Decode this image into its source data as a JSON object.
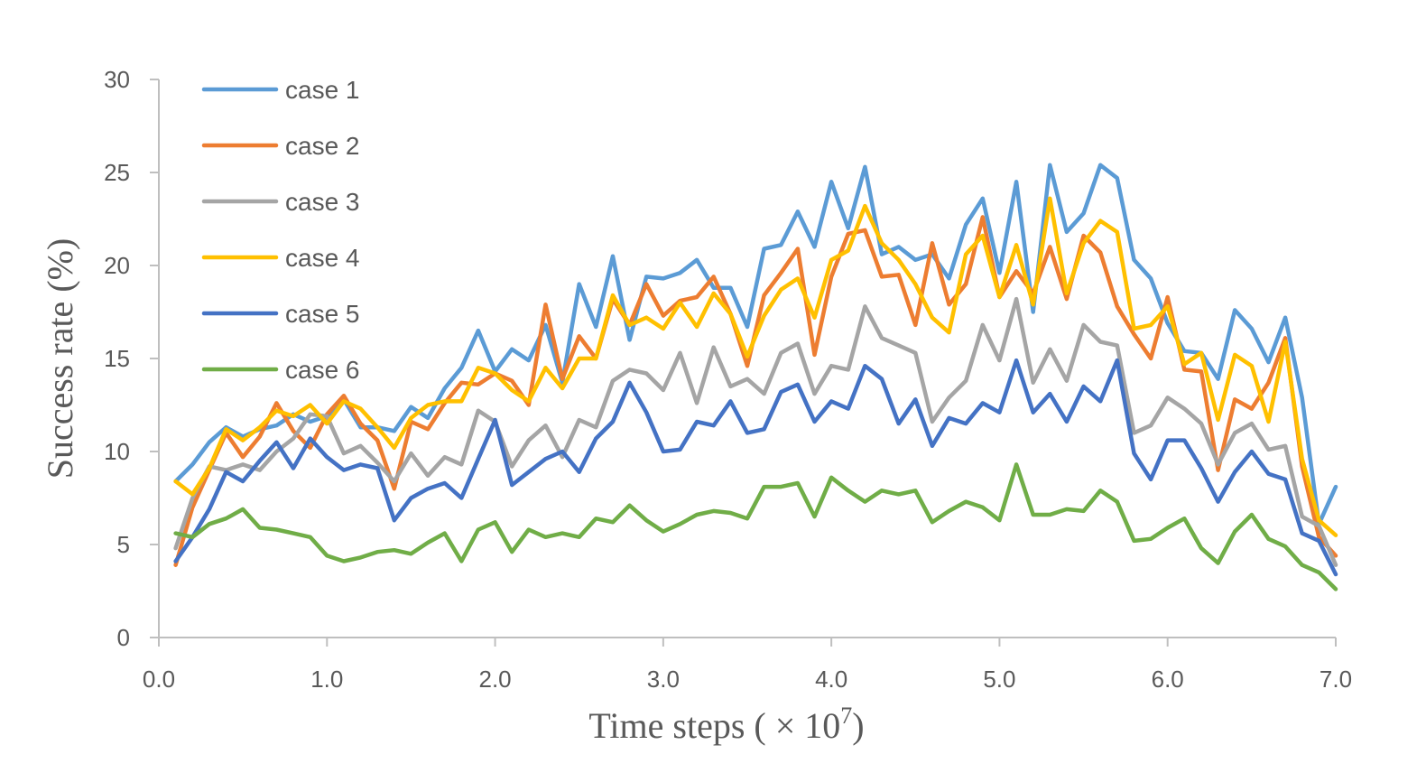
{
  "chart_data": {
    "type": "line",
    "title": "",
    "xlabel": "Time steps ( × 10",
    "xlabel_exponent": "7",
    "xlabel_suffix": ")",
    "ylabel": "Success rate (%)",
    "xlim": [
      0,
      7
    ],
    "ylim": [
      0,
      30
    ],
    "x_ticks": [
      0,
      1,
      2,
      3,
      4,
      5,
      6,
      7
    ],
    "x_tick_labels": [
      "0.0",
      "1.0",
      "2.0",
      "3.0",
      "4.0",
      "5.0",
      "6.0",
      "7.0"
    ],
    "y_ticks": [
      0,
      5,
      10,
      15,
      20,
      25,
      30
    ],
    "y_tick_labels": [
      "0",
      "5",
      "10",
      "15",
      "20",
      "25",
      "30"
    ],
    "grid": false,
    "legend_position": "top-left",
    "x": [
      0.1,
      0.2,
      0.3,
      0.4,
      0.5,
      0.6,
      0.7,
      0.8,
      0.9,
      1.0,
      1.1,
      1.2,
      1.3,
      1.4,
      1.5,
      1.6,
      1.7,
      1.8,
      1.9,
      2.0,
      2.1,
      2.2,
      2.3,
      2.4,
      2.5,
      2.6,
      2.7,
      2.8,
      2.9,
      3.0,
      3.1,
      3.2,
      3.3,
      3.4,
      3.5,
      3.6,
      3.7,
      3.8,
      3.9,
      4.0,
      4.1,
      4.2,
      4.3,
      4.4,
      4.5,
      4.6,
      4.7,
      4.8,
      4.9,
      5.0,
      5.1,
      5.2,
      5.3,
      5.4,
      5.5,
      5.6,
      5.7,
      5.8,
      5.9,
      6.0,
      6.1,
      6.2,
      6.3,
      6.4,
      6.5,
      6.6,
      6.7,
      6.8,
      6.9,
      7.0
    ],
    "series": [
      {
        "name": "case 1",
        "color": "#5B9BD5",
        "values": [
          8.4,
          9.3,
          10.5,
          11.3,
          10.8,
          11.2,
          11.4,
          12.0,
          11.6,
          11.9,
          12.8,
          11.3,
          11.3,
          11.1,
          12.4,
          11.8,
          13.4,
          14.5,
          16.5,
          14.3,
          15.5,
          14.9,
          16.8,
          13.7,
          19.0,
          16.7,
          20.5,
          16.0,
          19.4,
          19.3,
          19.6,
          20.3,
          18.8,
          18.8,
          16.7,
          20.9,
          21.1,
          22.9,
          21.0,
          24.5,
          22.0,
          25.3,
          20.6,
          21.0,
          20.3,
          20.6,
          19.3,
          22.2,
          23.6,
          19.6,
          24.5,
          17.5,
          25.4,
          21.8,
          22.8,
          25.4,
          24.7,
          20.3,
          19.3,
          16.9,
          15.4,
          15.3,
          13.9,
          17.6,
          16.6,
          14.8,
          17.2,
          12.9,
          6.1,
          8.1
        ]
      },
      {
        "name": "case 2",
        "color": "#ED7D31",
        "values": [
          3.9,
          7.0,
          9.0,
          11.0,
          9.7,
          10.8,
          12.6,
          11.1,
          10.2,
          12.0,
          13.0,
          11.5,
          10.6,
          8.0,
          11.6,
          11.2,
          12.6,
          13.7,
          13.6,
          14.2,
          13.8,
          12.5,
          17.9,
          13.9,
          16.2,
          15.0,
          18.2,
          16.8,
          19.0,
          17.3,
          18.1,
          18.3,
          19.4,
          17.4,
          14.6,
          18.4,
          19.6,
          20.9,
          15.2,
          19.4,
          21.7,
          21.9,
          19.4,
          19.5,
          16.8,
          21.2,
          17.9,
          19.0,
          22.6,
          18.3,
          19.7,
          18.5,
          21.0,
          18.2,
          21.6,
          20.7,
          17.8,
          16.3,
          15.0,
          18.3,
          14.4,
          14.3,
          9.0,
          12.8,
          12.3,
          13.7,
          16.1,
          9.2,
          5.4,
          4.4
        ]
      },
      {
        "name": "case 3",
        "color": "#A5A5A5",
        "values": [
          4.8,
          7.5,
          9.2,
          9.0,
          9.3,
          9.0,
          10.0,
          10.7,
          12.0,
          11.9,
          9.9,
          10.3,
          9.4,
          8.4,
          9.9,
          8.7,
          9.7,
          9.3,
          12.2,
          11.6,
          9.2,
          10.6,
          11.4,
          9.7,
          11.7,
          11.3,
          13.8,
          14.4,
          14.2,
          13.3,
          15.3,
          12.6,
          15.6,
          13.5,
          13.9,
          13.1,
          15.3,
          15.8,
          13.1,
          14.6,
          14.4,
          17.8,
          16.1,
          15.7,
          15.3,
          11.6,
          12.9,
          13.8,
          16.8,
          14.9,
          18.2,
          13.7,
          15.5,
          13.8,
          16.8,
          15.9,
          15.7,
          11.0,
          11.4,
          12.9,
          12.3,
          11.5,
          9.3,
          11.0,
          11.5,
          10.1,
          10.3,
          6.5,
          6.0,
          3.9
        ]
      },
      {
        "name": "case 4",
        "color": "#FFC000",
        "values": [
          8.4,
          7.7,
          9.1,
          11.2,
          10.6,
          11.3,
          12.2,
          11.9,
          12.5,
          11.5,
          12.7,
          12.3,
          11.3,
          10.2,
          11.8,
          12.5,
          12.7,
          12.7,
          14.5,
          14.2,
          13.3,
          12.7,
          14.5,
          13.4,
          15.0,
          15.0,
          18.4,
          16.8,
          17.2,
          16.6,
          18.0,
          16.7,
          18.5,
          17.4,
          15.1,
          17.3,
          18.7,
          19.3,
          17.2,
          20.3,
          20.8,
          23.2,
          21.2,
          20.3,
          19.0,
          17.2,
          16.4,
          20.6,
          21.6,
          18.3,
          21.1,
          17.9,
          23.6,
          18.5,
          21.2,
          22.4,
          21.8,
          16.6,
          16.8,
          17.8,
          14.7,
          15.3,
          11.7,
          15.2,
          14.6,
          11.6,
          15.9,
          9.6,
          6.3,
          5.5
        ]
      },
      {
        "name": "case 5",
        "color": "#4472C4",
        "values": [
          4.1,
          5.4,
          6.9,
          8.9,
          8.4,
          9.5,
          10.5,
          9.1,
          10.7,
          9.7,
          9.0,
          9.3,
          9.1,
          6.3,
          7.5,
          8.0,
          8.3,
          7.5,
          9.6,
          11.7,
          8.2,
          8.9,
          9.6,
          10.0,
          8.9,
          10.7,
          11.6,
          13.7,
          12.1,
          10.0,
          10.1,
          11.6,
          11.4,
          12.7,
          11.0,
          11.2,
          13.2,
          13.6,
          11.6,
          12.7,
          12.3,
          14.6,
          13.9,
          11.5,
          12.8,
          10.3,
          11.8,
          11.5,
          12.6,
          12.1,
          14.9,
          12.1,
          13.1,
          11.6,
          13.5,
          12.7,
          14.9,
          9.9,
          8.5,
          10.6,
          10.6,
          9.1,
          7.3,
          8.9,
          10.0,
          8.8,
          8.5,
          5.6,
          5.2,
          3.4
        ]
      },
      {
        "name": "case 6",
        "color": "#70AD47",
        "values": [
          5.6,
          5.4,
          6.1,
          6.4,
          6.9,
          5.9,
          5.8,
          5.6,
          5.4,
          4.4,
          4.1,
          4.3,
          4.6,
          4.7,
          4.5,
          5.1,
          5.6,
          4.1,
          5.8,
          6.2,
          4.6,
          5.8,
          5.4,
          5.6,
          5.4,
          6.4,
          6.2,
          7.1,
          6.3,
          5.7,
          6.1,
          6.6,
          6.8,
          6.7,
          6.4,
          8.1,
          8.1,
          8.3,
          6.5,
          8.6,
          7.9,
          7.3,
          7.9,
          7.7,
          7.9,
          6.2,
          6.8,
          7.3,
          7.0,
          6.3,
          9.3,
          6.6,
          6.6,
          6.9,
          6.8,
          7.9,
          7.3,
          5.2,
          5.3,
          5.9,
          6.4,
          4.8,
          4.0,
          5.7,
          6.6,
          5.3,
          4.9,
          3.9,
          3.5,
          2.6
        ]
      }
    ]
  }
}
